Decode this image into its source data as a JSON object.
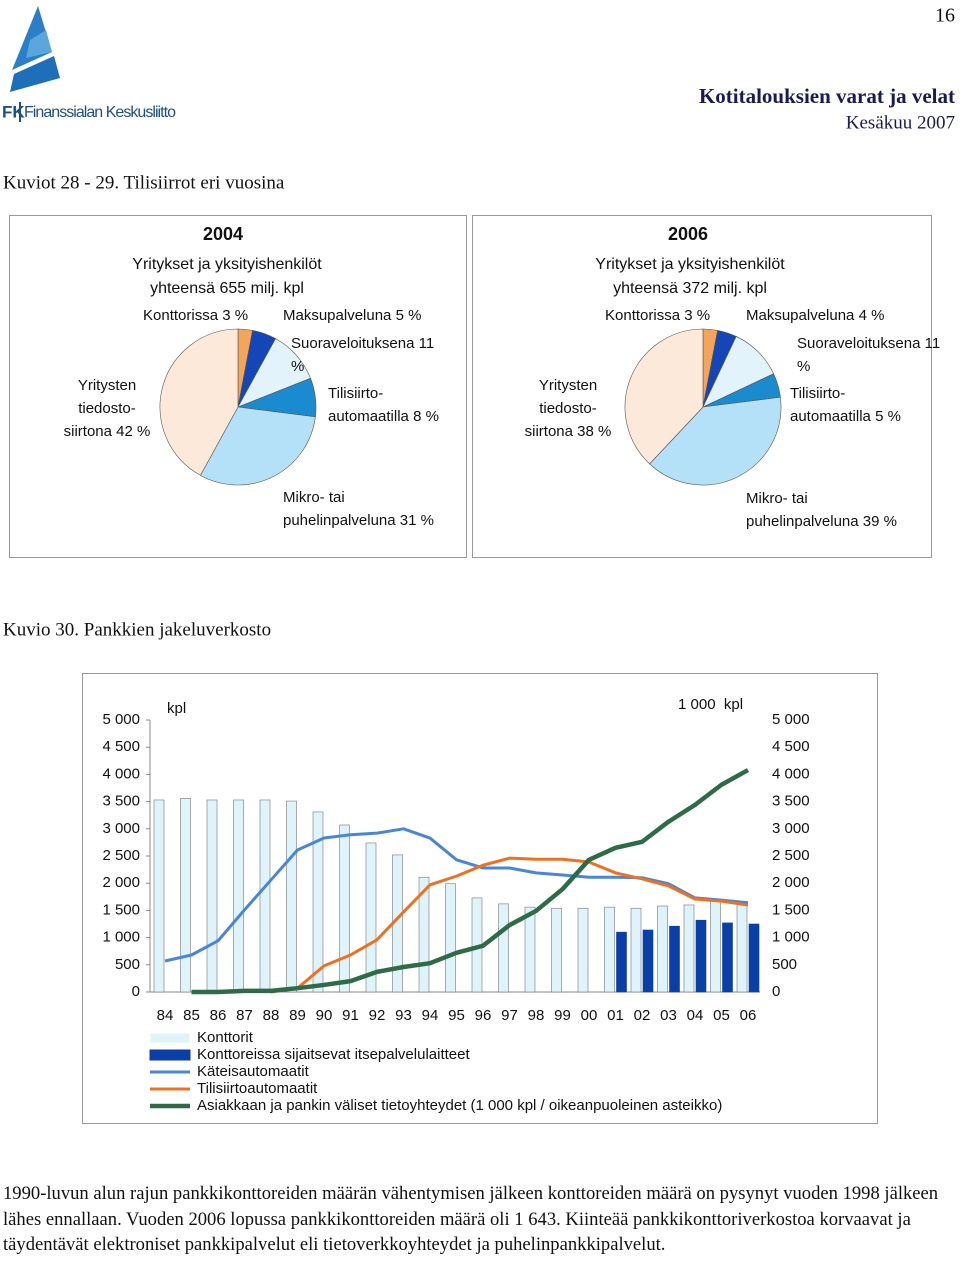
{
  "header": {
    "logo": {
      "abbr": "FK",
      "name": "Finanssialan Keskusliitto"
    },
    "page_number": "16",
    "title": "Kotitalouksien varat ja velat",
    "date": "Kesäkuu 2007"
  },
  "captions": [
    "Kuviot 28 - 29. Tilisiirrot eri vuosina",
    "Kuvio 30. Pankkien jakeluverkosto"
  ],
  "chart_data": [
    {
      "type": "pie",
      "title": "2004",
      "subtitle": [
        "Yritykset ja yksityishenkilöt",
        "yhteensä 655 milj. kpl"
      ],
      "categories": [
        "Konttorissa",
        "Maksupalveluna",
        "Suoraveloituksena",
        "Tilisiirto-automaatilla",
        "Mikro- tai puhelinpalveluna",
        "Yritysten tiedosto-siirtona"
      ],
      "values": [
        3,
        5,
        11,
        8,
        31,
        42
      ],
      "value_labels": [
        "3 %",
        "5 %",
        "11 %",
        "8 %",
        "31 %",
        "42 %"
      ],
      "colors": [
        "#f5a55a",
        "#1446b8",
        "#e2f3fb",
        "#1a8bcf",
        "#b5e1f8",
        "#fde9da"
      ]
    },
    {
      "type": "pie",
      "title": "2006",
      "subtitle": [
        "Yritykset ja yksityishenkilöt",
        "yhteensä 372 milj. kpl"
      ],
      "categories": [
        "Konttorissa",
        "Maksupalveluna",
        "Suoraveloituksena",
        "Tilisiirto-automaatilla",
        "Mikro- tai puhelinpalveluna",
        "Yritysten tiedosto-siirtona"
      ],
      "values": [
        3,
        4,
        11,
        5,
        39,
        38
      ],
      "value_labels": [
        "3 %",
        "4 %",
        "11 %",
        "5 %",
        "39 %",
        "38 %"
      ],
      "colors": [
        "#f5a55a",
        "#1446b8",
        "#e2f3fb",
        "#1a8bcf",
        "#b5e1f8",
        "#fde9da"
      ]
    },
    {
      "type": "combo",
      "y_label": "kpl",
      "y2_label": "1 000  kpl",
      "categories": [
        "84",
        "85",
        "86",
        "87",
        "88",
        "89",
        "90",
        "91",
        "92",
        "93",
        "94",
        "95",
        "96",
        "97",
        "98",
        "99",
        "00",
        "01",
        "02",
        "03",
        "04",
        "05",
        "06"
      ],
      "series": [
        {
          "name": "Konttorit",
          "kind": "bar",
          "color": "#dff3fb",
          "values": [
            3530,
            3560,
            3530,
            3530,
            3530,
            3510,
            3310,
            3070,
            2740,
            2520,
            2110,
            1990,
            1730,
            1620,
            1560,
            1540,
            1540,
            1560,
            1540,
            1580,
            1600,
            1700,
            1643
          ]
        },
        {
          "name": "Konttoreissa sijaitsevat itsepalvelulaitteet",
          "kind": "bar",
          "color": "#0b3fa8",
          "values": [
            null,
            null,
            null,
            null,
            null,
            null,
            null,
            null,
            null,
            null,
            null,
            null,
            null,
            null,
            null,
            null,
            null,
            1100,
            1140,
            1210,
            1320,
            1270,
            1250
          ]
        },
        {
          "name": "Käteisautomaatit",
          "kind": "line",
          "color": "#4a86d8",
          "values": [
            570,
            680,
            940,
            1510,
            2060,
            2610,
            2830,
            2890,
            2920,
            3000,
            2830,
            2430,
            2280,
            2280,
            2190,
            2150,
            2110,
            2110,
            2100,
            1990,
            1730,
            1690,
            1640
          ]
        },
        {
          "name": "Tilisiirtoautomaatit",
          "kind": "line",
          "color": "#f07020",
          "values": [
            null,
            null,
            null,
            null,
            0,
            70,
            480,
            680,
            960,
            1470,
            1970,
            2130,
            2330,
            2460,
            2440,
            2440,
            2390,
            2190,
            2080,
            1950,
            1710,
            1670,
            1600
          ]
        },
        {
          "name": "Asiakkaan ja pankin väliset tietoyhteydet (1 000 kpl / oikeanpuoleinen asteikko)",
          "kind": "line",
          "axis": "y2",
          "color": "#2e6b47",
          "values": [
            null,
            0,
            0,
            20,
            20,
            70,
            130,
            200,
            370,
            460,
            530,
            720,
            850,
            1230,
            1490,
            1890,
            2430,
            2650,
            2760,
            3130,
            3440,
            3810,
            4080
          ]
        }
      ],
      "ylim": [
        0,
        5000
      ],
      "yticks": [
        0,
        500,
        {
          "value": 1000,
          "label": "1 000"
        },
        {
          "value": 1500,
          "label": "1 500"
        },
        {
          "value": 2000,
          "label": "2 000"
        },
        {
          "value": 2500,
          "label": "2 500"
        },
        {
          "value": 3000,
          "label": "3 000"
        },
        {
          "value": 3500,
          "label": "3 500"
        },
        {
          "value": 4000,
          "label": "4 000"
        },
        {
          "value": 4500,
          "label": "4 500"
        },
        {
          "value": 5000,
          "label": "5 000"
        }
      ],
      "y2lim": [
        0,
        5000
      ],
      "y2ticks": [
        0,
        500,
        {
          "value": 1000,
          "label": "1 000"
        },
        {
          "value": 1500,
          "label": "1 500"
        },
        {
          "value": 2000,
          "label": "2 000"
        },
        {
          "value": 2500,
          "label": "2 500"
        },
        {
          "value": 3000,
          "label": "3 000"
        },
        {
          "value": 3500,
          "label": "3 500"
        },
        {
          "value": 4000,
          "label": "4 000"
        },
        {
          "value": 4500,
          "label": "4 500"
        },
        {
          "value": 5000,
          "label": "5 000"
        }
      ]
    }
  ],
  "body": "1990-luvun alun rajun pankkikonttoreiden määrän vähentymisen jälkeen konttoreiden määrä on pysynyt vuoden 1998 jälkeen lähes ennallaan. Vuoden 2006 lopussa pankkikonttoreiden määrä oli 1 643. Kiinteää pankkikonttoriverkostoa korvaavat ja täydentävät elektroniset pankkipalvelut eli tietoverkkoyhteydet ja puhelinpankkipalvelut."
}
